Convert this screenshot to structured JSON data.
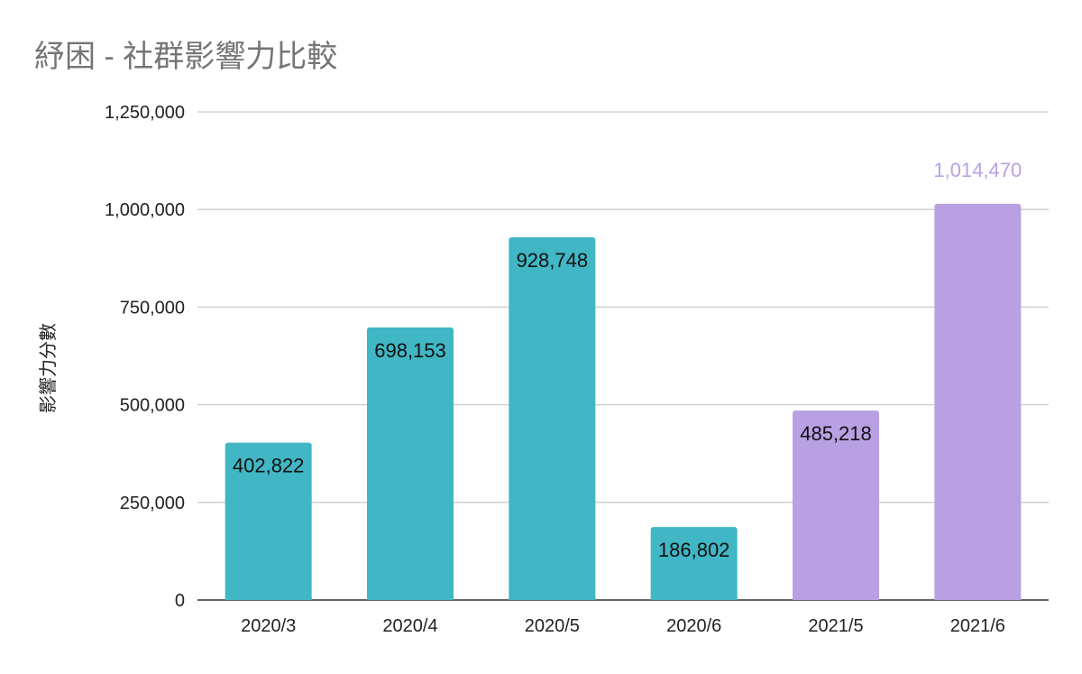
{
  "chart_data": {
    "type": "bar",
    "title": "紓困 - 社群影響力比較",
    "xlabel": "",
    "ylabel": "影響力分數",
    "categories": [
      "2020/3",
      "2020/4",
      "2020/5",
      "2020/6",
      "2021/5",
      "2021/6"
    ],
    "values": [
      402822,
      698153,
      928748,
      186802,
      485218,
      1014470
    ],
    "data_labels": [
      "402,822",
      "698,153",
      "928,748",
      "186,802",
      "485,218",
      "1,014,470"
    ],
    "ylim": [
      0,
      1250000
    ],
    "yticks": [
      0,
      250000,
      500000,
      750000,
      1000000,
      1250000
    ],
    "ytick_labels": [
      "0",
      "250,000",
      "500,000",
      "750,000",
      "1,000,000",
      "1,250,000"
    ],
    "grid": true,
    "legend": "none",
    "colors": {
      "teal": "#41b6c4",
      "lavender": "#b9a0e3",
      "label_dark": "#111111",
      "label_light": "#b9a0e3"
    },
    "bar_colors": [
      "teal",
      "teal",
      "teal",
      "teal",
      "lavender",
      "lavender"
    ]
  }
}
